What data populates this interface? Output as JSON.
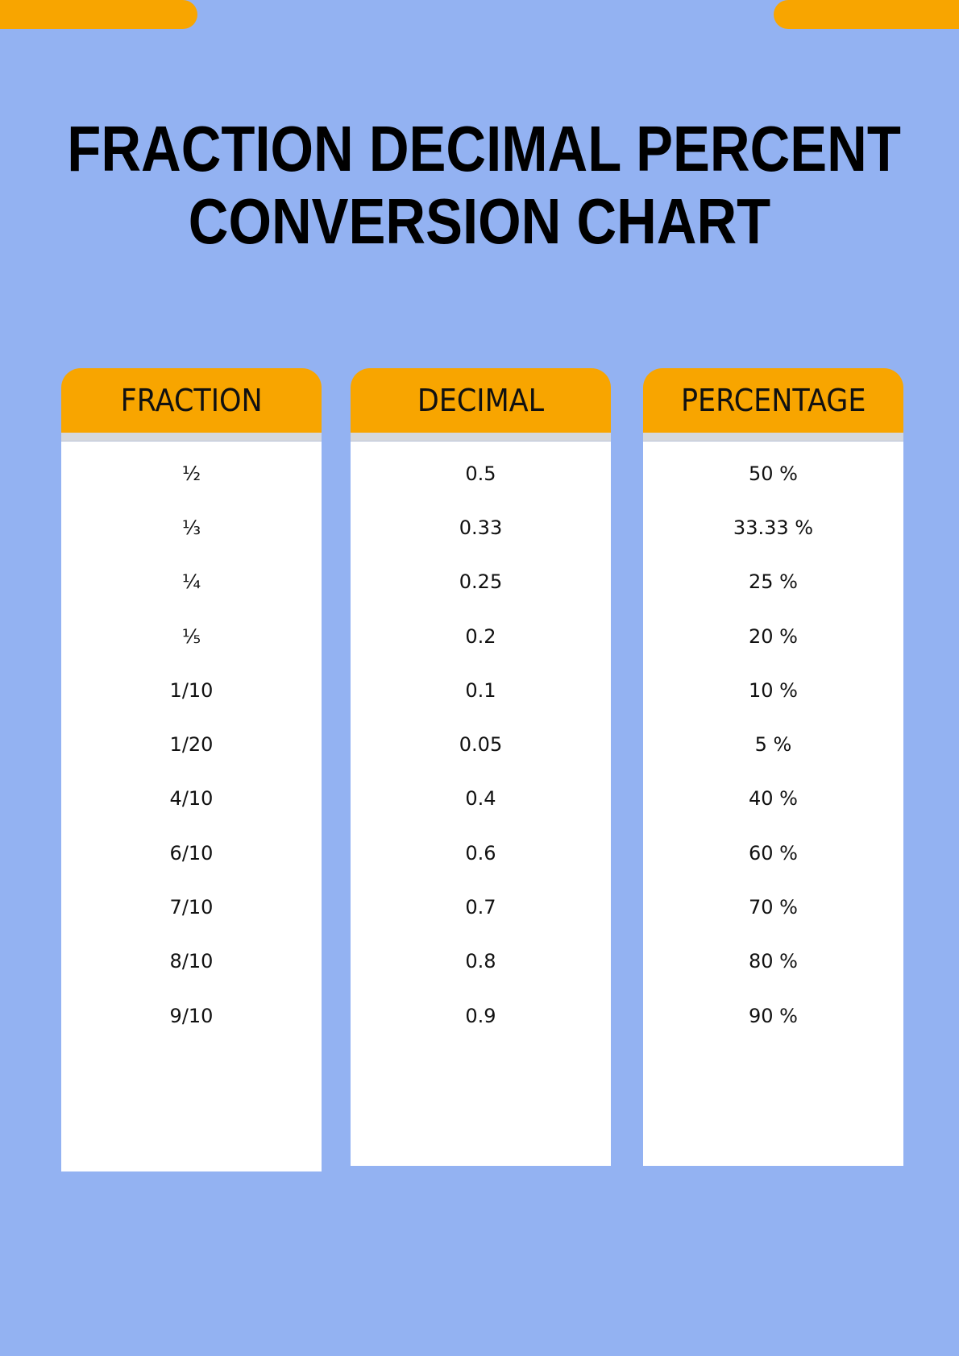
{
  "title": {
    "line1": "FRACTION DECIMAL PERCENT",
    "line2": "CONVERSION CHART"
  },
  "colors": {
    "background": "#93b2f2",
    "accent": "#f8a500"
  },
  "columns": [
    {
      "header": "FRACTION",
      "values": [
        "½",
        "⅓",
        "¼",
        "⅕",
        "1/10",
        "1/20",
        "4/10",
        "6/10",
        "7/10",
        "8/10",
        "9/10"
      ]
    },
    {
      "header": "DECIMAL",
      "values": [
        "0.5",
        "0.33",
        "0.25",
        "0.2",
        "0.1",
        "0.05",
        "0.4",
        "0.6",
        "0.7",
        "0.8",
        "0.9"
      ]
    },
    {
      "header": "PERCENTAGE",
      "values": [
        "50 %",
        "33.33 %",
        "25 %",
        "20 %",
        "10 %",
        "5 %",
        "40 %",
        "60 %",
        "70 %",
        "80 %",
        "90 %"
      ]
    }
  ]
}
